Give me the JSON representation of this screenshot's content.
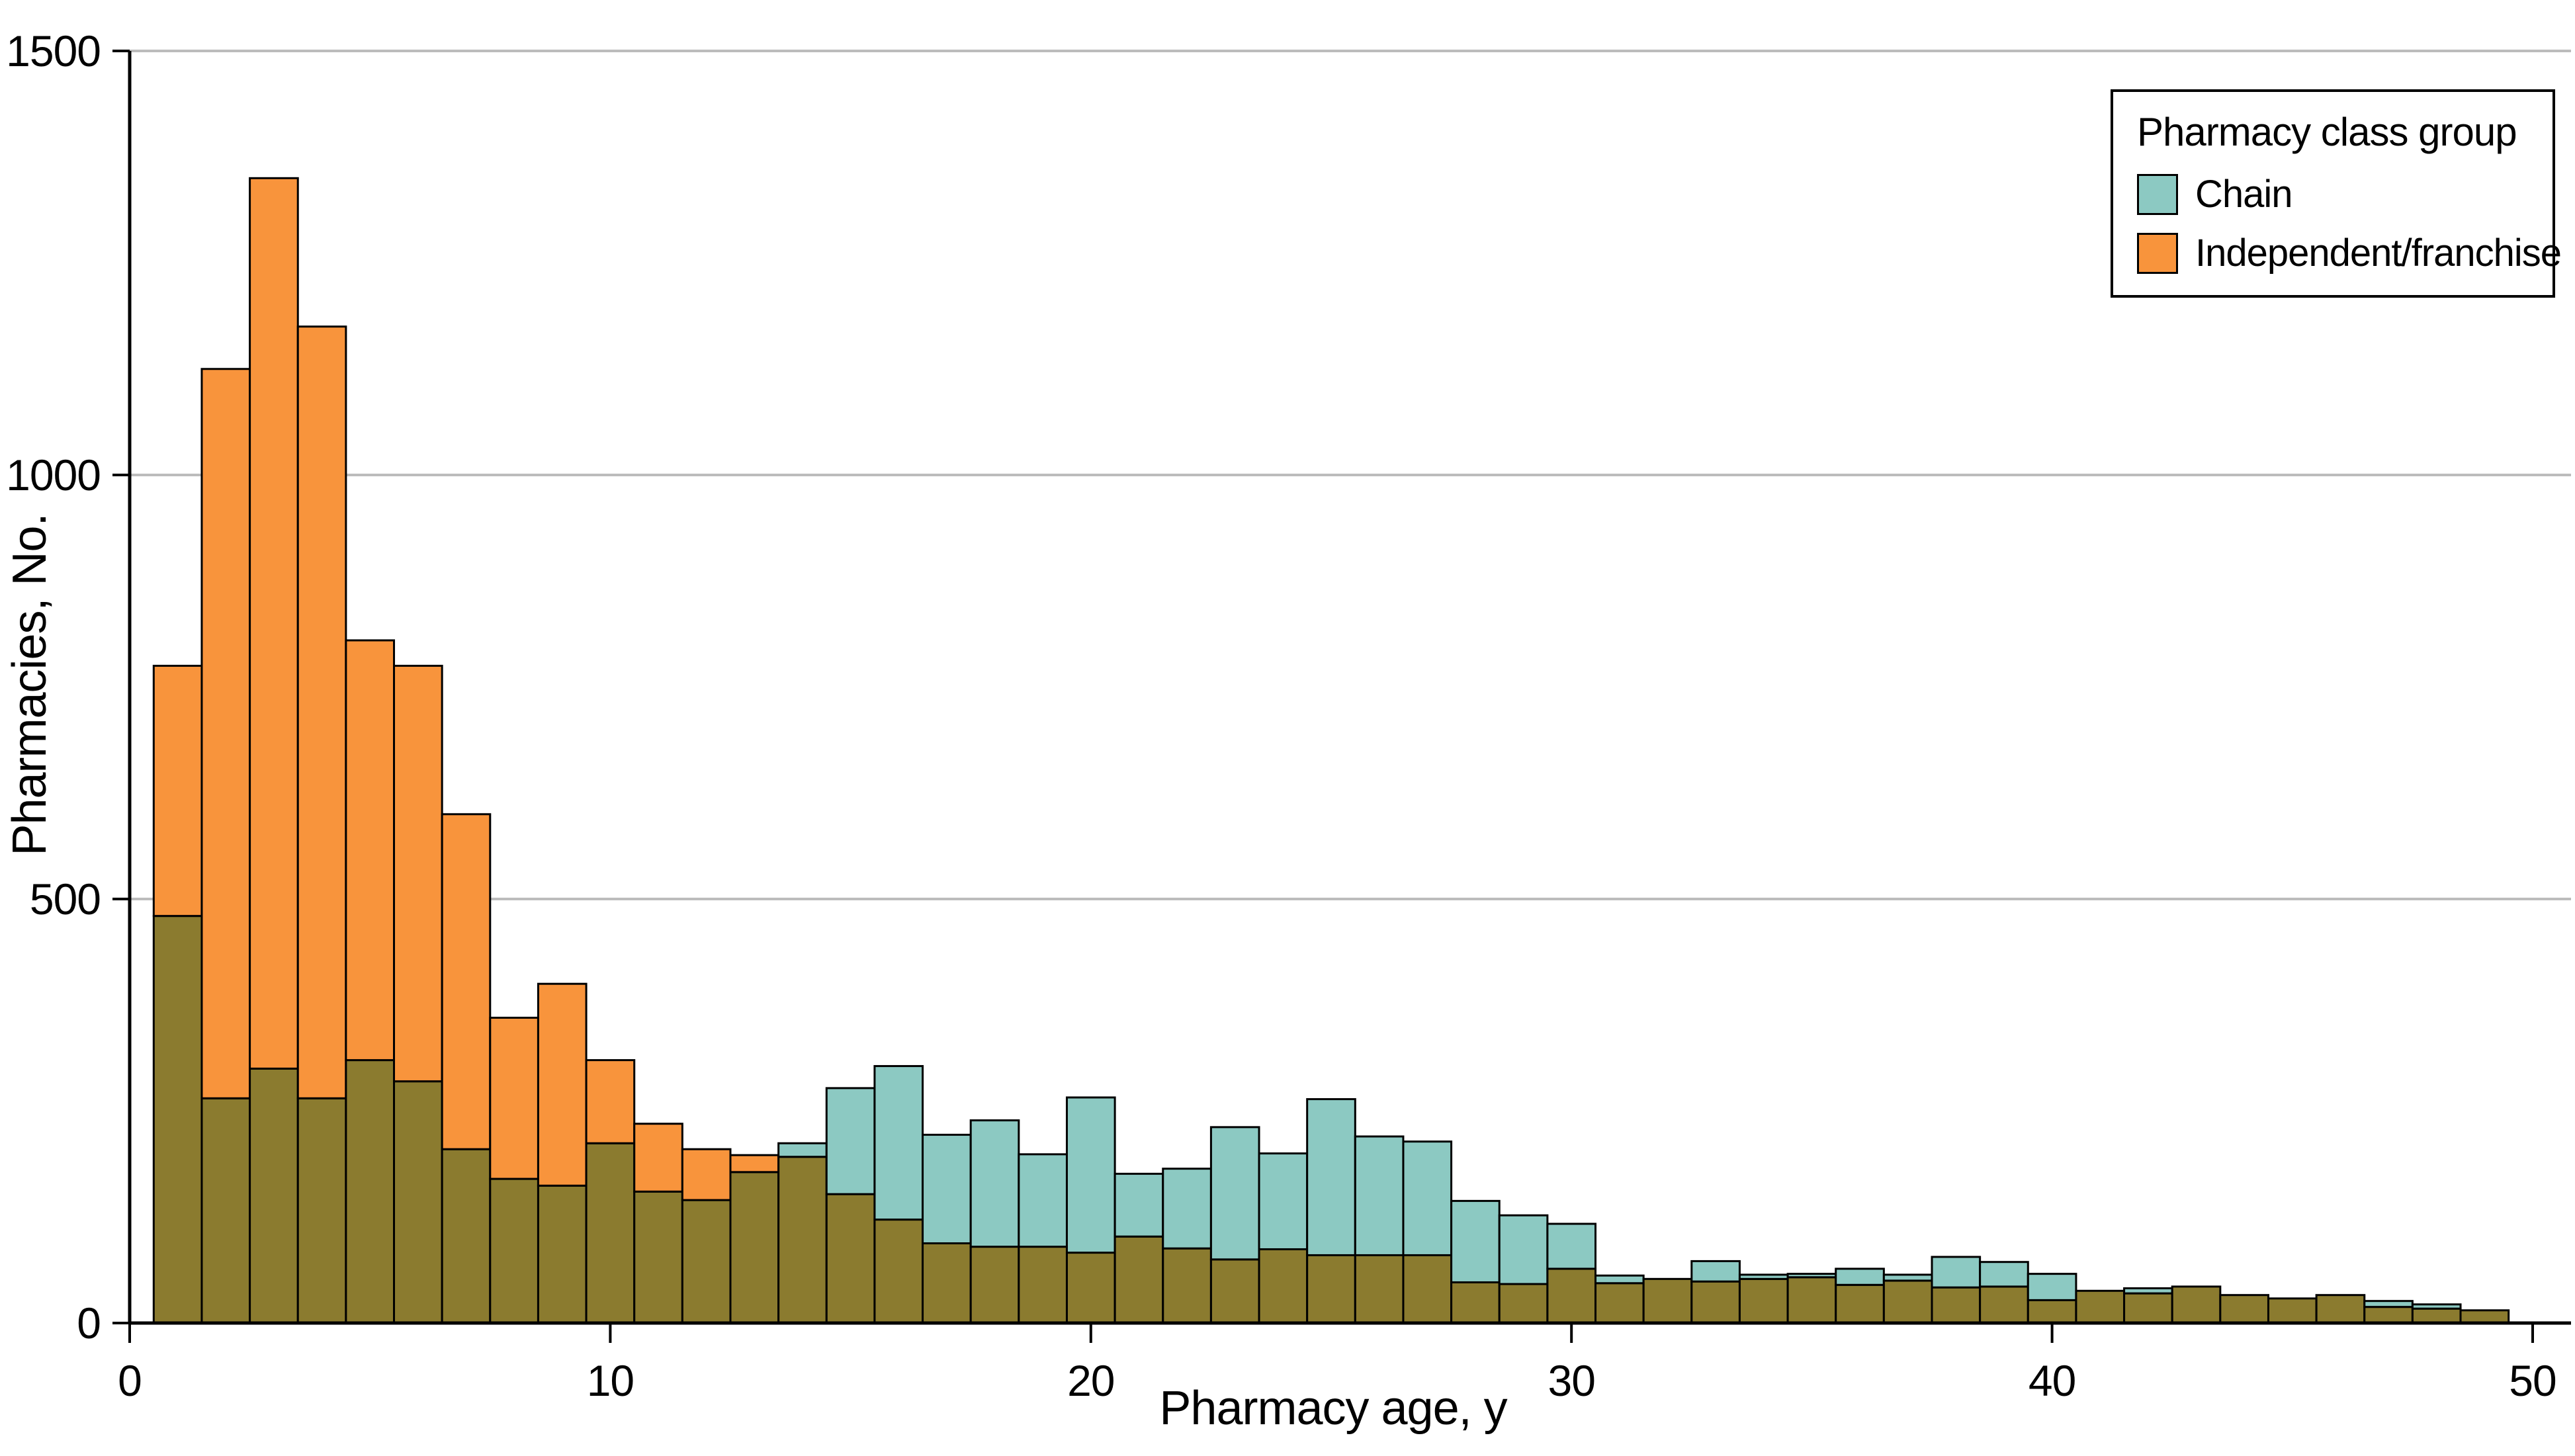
{
  "chart_data": {
    "type": "histogram",
    "style": "overlaid-transparent",
    "title": "",
    "xlabel": "Pharmacy age, y",
    "ylabel": "Pharmacies, No.",
    "xlim": [
      0,
      50
    ],
    "ylim": [
      0,
      1500
    ],
    "xticks": [
      0,
      10,
      20,
      30,
      40,
      50
    ],
    "yticks": [
      0,
      500,
      1000,
      1500
    ],
    "grid": "horizontal",
    "bin_width": 1,
    "bin_centers": [
      1,
      2,
      3,
      4,
      5,
      6,
      7,
      8,
      9,
      10,
      11,
      12,
      13,
      14,
      15,
      16,
      17,
      18,
      19,
      20,
      21,
      22,
      23,
      24,
      25,
      26,
      27,
      28,
      29,
      30,
      31,
      32,
      33,
      34,
      35,
      36,
      37,
      38,
      39,
      40,
      41,
      42,
      43,
      44,
      45,
      46,
      47,
      48,
      49
    ],
    "series": [
      {
        "name": "Chain",
        "color": "#8CC9C2",
        "values": [
          480,
          265,
          300,
          265,
          310,
          285,
          205,
          170,
          162,
          212,
          155,
          145,
          178,
          212,
          277,
          303,
          222,
          239,
          199,
          266,
          176,
          182,
          231,
          200,
          264,
          220,
          214,
          144,
          127,
          117,
          56,
          52,
          73,
          57,
          58,
          64,
          57,
          78,
          72,
          58,
          38,
          41,
          43,
          33,
          29,
          33,
          26,
          22,
          15
        ]
      },
      {
        "name": "Independent/franchise",
        "color": "#F8943C",
        "values": [
          775,
          1125,
          1350,
          1175,
          805,
          775,
          600,
          360,
          400,
          310,
          235,
          205,
          198,
          196,
          152,
          122,
          94,
          90,
          90,
          83,
          102,
          88,
          75,
          87,
          80,
          80,
          80,
          48,
          46,
          64,
          47,
          52,
          49,
          52,
          54,
          45,
          50,
          42,
          43,
          27,
          38,
          35,
          43,
          33,
          29,
          33,
          19,
          17,
          15
        ]
      }
    ],
    "overlap_color": "#8B7B2F",
    "axis_color": "#000000",
    "gridline_color": "#BCBCBC",
    "legend": {
      "title": "Pharmacy class group",
      "position": "top-right",
      "entries": [
        "Chain",
        "Independent/franchise"
      ]
    }
  }
}
